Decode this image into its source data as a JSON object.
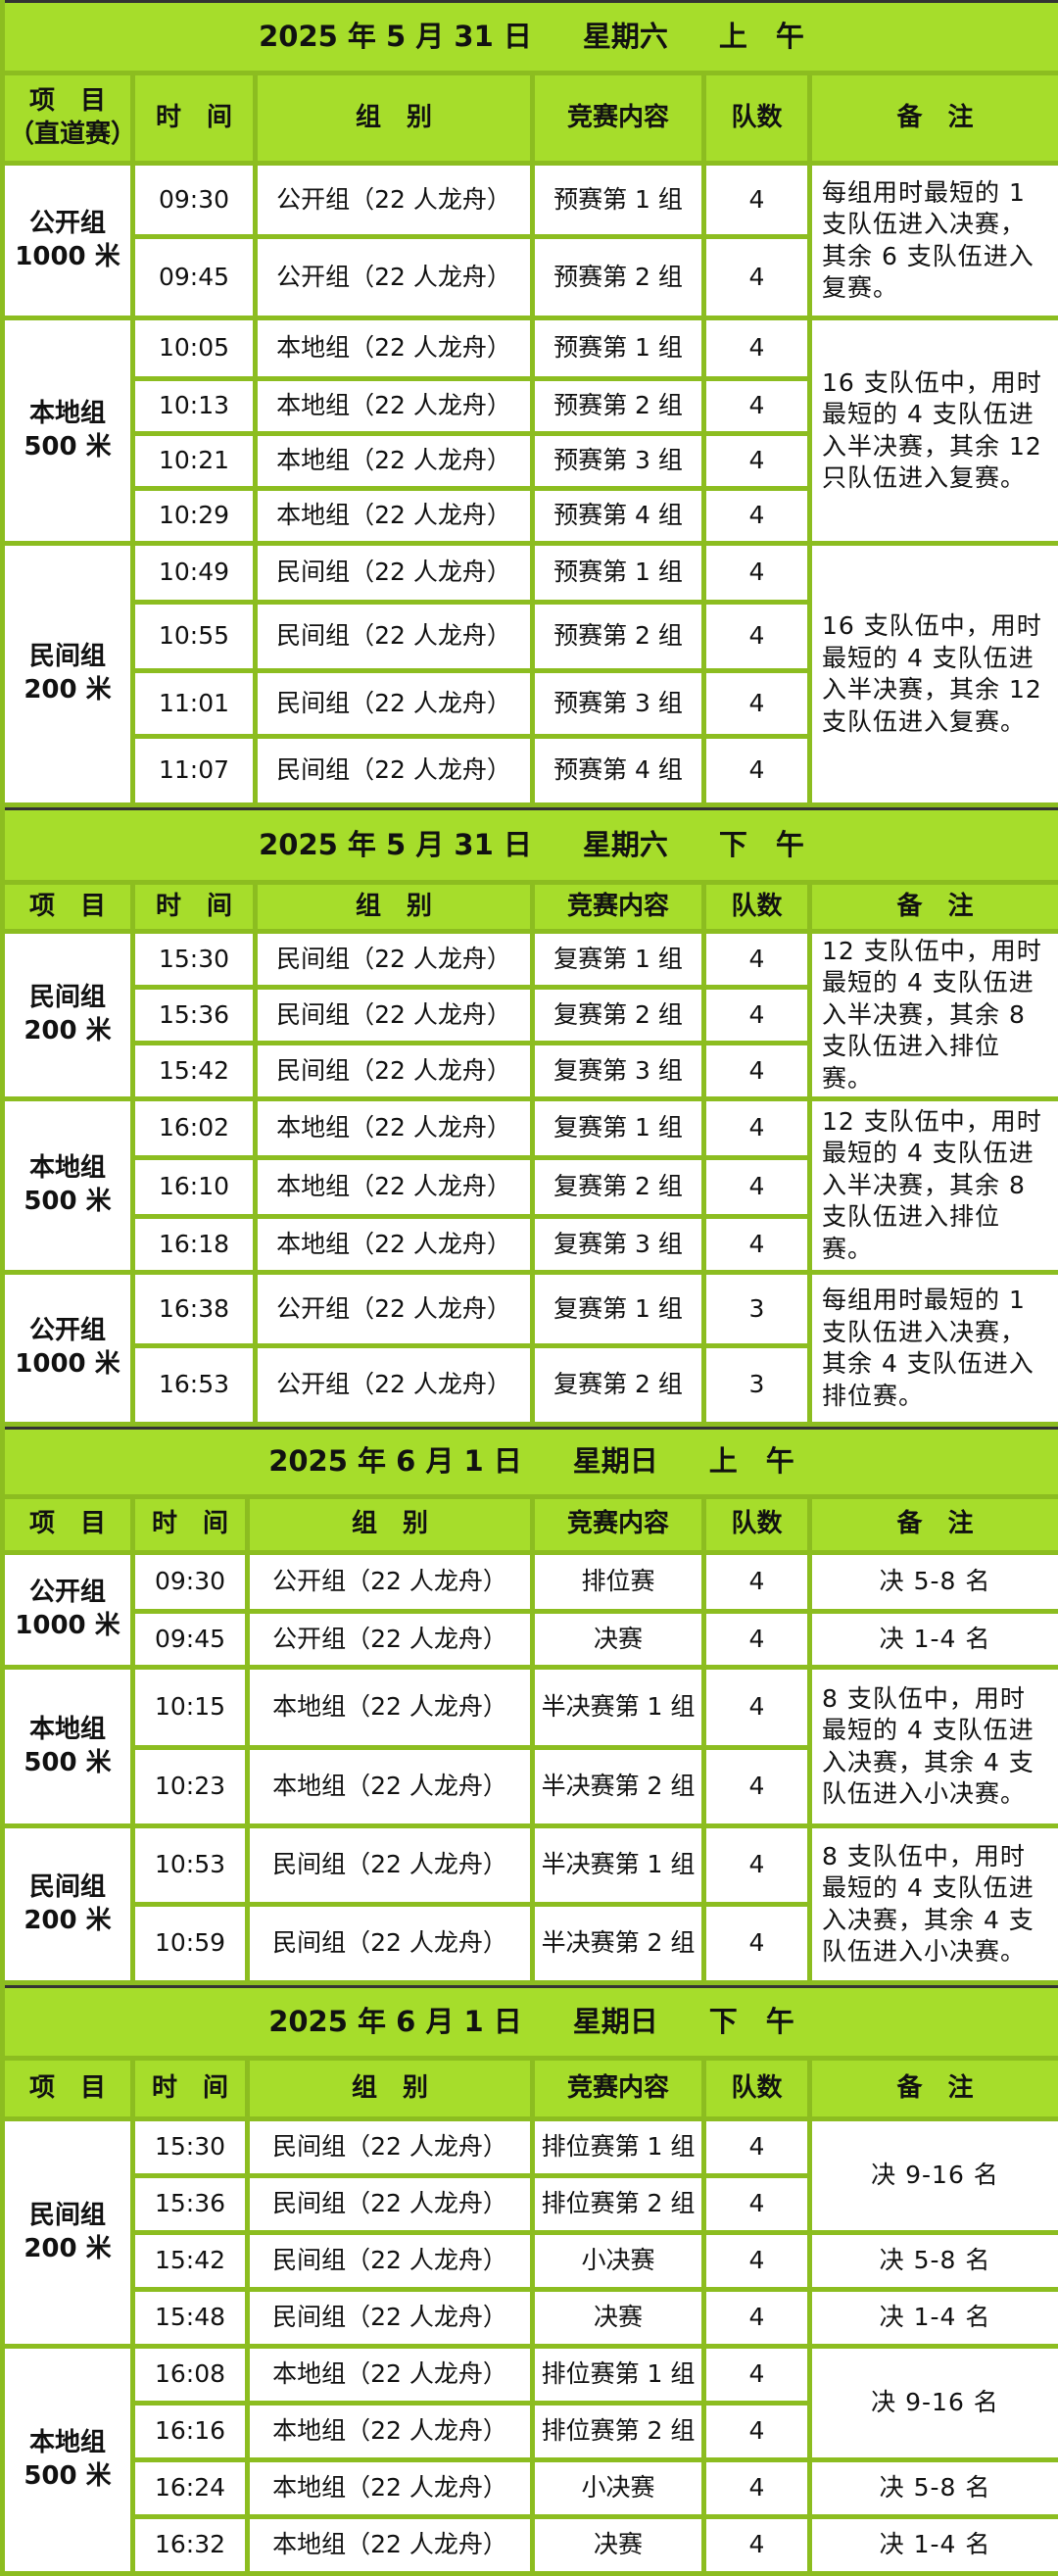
{
  "colors": {
    "header_bg": "#a6dd2b",
    "border": "#8cbd20"
  },
  "sections": [
    {
      "title": {
        "date": "2025 年 5 月 31 日",
        "weekday": "星期六",
        "period": "上　午"
      },
      "headers": {
        "item": "项　目",
        "item_sub": "（直道赛）",
        "time": "时　间",
        "group": "组　别",
        "content": "竞赛内容",
        "teams": "队数",
        "remark": "备　注"
      },
      "groups": [
        {
          "event": [
            "公开组",
            "1000 米"
          ],
          "rows": [
            {
              "time": "09:30",
              "group": "公开组（22 人龙舟）",
              "content": "预赛第 1 组",
              "teams": "4"
            },
            {
              "time": "09:45",
              "group": "公开组（22 人龙舟）",
              "content": "预赛第 2 组",
              "teams": "4"
            }
          ],
          "remarks": [
            {
              "text": "每组用时最短的 1 支队伍进入决赛，其余 6 支队伍进入复赛。",
              "span": 2
            }
          ]
        },
        {
          "event": [
            "本地组",
            "500 米"
          ],
          "rows": [
            {
              "time": "10:05",
              "group": "本地组（22 人龙舟）",
              "content": "预赛第 1 组",
              "teams": "4"
            },
            {
              "time": "10:13",
              "group": "本地组（22 人龙舟）",
              "content": "预赛第 2 组",
              "teams": "4"
            },
            {
              "time": "10:21",
              "group": "本地组（22 人龙舟）",
              "content": "预赛第 3 组",
              "teams": "4"
            },
            {
              "time": "10:29",
              "group": "本地组（22 人龙舟）",
              "content": "预赛第 4 组",
              "teams": "4"
            }
          ],
          "remarks": [
            {
              "text": "16 支队伍中，用时最短的 4 支队伍进入半决赛，其余 12 只队伍进入复赛。",
              "span": 4
            }
          ]
        },
        {
          "event": [
            "民间组",
            "200 米"
          ],
          "rows": [
            {
              "time": "10:49",
              "group": "民间组（22 人龙舟）",
              "content": "预赛第 1 组",
              "teams": "4"
            },
            {
              "time": "10:55",
              "group": "民间组（22 人龙舟）",
              "content": "预赛第 2 组",
              "teams": "4"
            },
            {
              "time": "11:01",
              "group": "民间组（22 人龙舟）",
              "content": "预赛第 3 组",
              "teams": "4"
            },
            {
              "time": "11:07",
              "group": "民间组（22 人龙舟）",
              "content": "预赛第 4 组",
              "teams": "4"
            }
          ],
          "remarks": [
            {
              "text": "16 支队伍中，用时最短的 4 支队伍进入半决赛，其余 12 支队伍进入复赛。",
              "span": 4
            }
          ]
        }
      ]
    },
    {
      "title": {
        "date": "2025 年 5 月 31 日",
        "weekday": "星期六",
        "period": "下　午"
      },
      "headers": {
        "item": "项　目",
        "time": "时　间",
        "group": "组　别",
        "content": "竞赛内容",
        "teams": "队数",
        "remark": "备　注"
      },
      "groups": [
        {
          "event": [
            "民间组",
            "200 米"
          ],
          "rows": [
            {
              "time": "15:30",
              "group": "民间组（22 人龙舟）",
              "content": "复赛第 1 组",
              "teams": "4"
            },
            {
              "time": "15:36",
              "group": "民间组（22 人龙舟）",
              "content": "复赛第 2 组",
              "teams": "4"
            },
            {
              "time": "15:42",
              "group": "民间组（22 人龙舟）",
              "content": "复赛第 3 组",
              "teams": "4"
            }
          ],
          "remarks": [
            {
              "text": "12 支队伍中，用时最短的 4 支队伍进入半决赛，其余 8 支队伍进入排位赛。",
              "span": 3
            }
          ]
        },
        {
          "event": [
            "本地组",
            "500 米"
          ],
          "rows": [
            {
              "time": "16:02",
              "group": "本地组（22 人龙舟）",
              "content": "复赛第 1 组",
              "teams": "4"
            },
            {
              "time": "16:10",
              "group": "本地组（22 人龙舟）",
              "content": "复赛第 2 组",
              "teams": "4"
            },
            {
              "time": "16:18",
              "group": "本地组（22 人龙舟）",
              "content": "复赛第 3 组",
              "teams": "4"
            }
          ],
          "remarks": [
            {
              "text": "12 支队伍中，用时最短的 4 支队伍进入半决赛，其余 8 支队伍进入排位赛。",
              "span": 3
            }
          ]
        },
        {
          "event": [
            "公开组",
            "1000 米"
          ],
          "rows": [
            {
              "time": "16:38",
              "group": "公开组（22 人龙舟）",
              "content": "复赛第 1 组",
              "teams": "3"
            },
            {
              "time": "16:53",
              "group": "公开组（22 人龙舟）",
              "content": "复赛第 2 组",
              "teams": "3"
            }
          ],
          "remarks": [
            {
              "text": "每组用时最短的 1 支队伍进入决赛，其余 4 支队伍进入排位赛。",
              "span": 2
            }
          ]
        }
      ]
    },
    {
      "title": {
        "date": "2025 年 6 月 1 日",
        "weekday": "星期日",
        "period": "上　午"
      },
      "headers": {
        "item": "项　目",
        "time": "时　间",
        "group": "组　别",
        "content": "竞赛内容",
        "teams": "队数",
        "remark": "备　注"
      },
      "groups": [
        {
          "event": [
            "公开组",
            "1000 米"
          ],
          "rows": [
            {
              "time": "09:30",
              "group": "公开组（22 人龙舟）",
              "content": "排位赛",
              "teams": "4"
            },
            {
              "time": "09:45",
              "group": "公开组（22 人龙舟）",
              "content": "决赛",
              "teams": "4"
            }
          ],
          "remarks": [
            {
              "text": "决 5-8 名",
              "span": 1,
              "center": true
            },
            {
              "text": "决 1-4 名",
              "span": 1,
              "center": true
            }
          ]
        },
        {
          "event": [
            "本地组",
            "500 米"
          ],
          "rows": [
            {
              "time": "10:15",
              "group": "本地组（22 人龙舟）",
              "content": "半决赛第 1 组",
              "teams": "4"
            },
            {
              "time": "10:23",
              "group": "本地组（22 人龙舟）",
              "content": "半决赛第 2 组",
              "teams": "4"
            }
          ],
          "remarks": [
            {
              "text": "8 支队伍中，用时最短的 4 支队伍进入决赛，其余 4 支队伍进入小决赛。",
              "span": 2
            }
          ]
        },
        {
          "event": [
            "民间组",
            "200 米"
          ],
          "rows": [
            {
              "time": "10:53",
              "group": "民间组（22 人龙舟）",
              "content": "半决赛第 1 组",
              "teams": "4"
            },
            {
              "time": "10:59",
              "group": "民间组（22 人龙舟）",
              "content": "半决赛第 2 组",
              "teams": "4"
            }
          ],
          "remarks": [
            {
              "text": "8 支队伍中，用时最短的 4 支队伍进入决赛，其余 4 支队伍进入小决赛。",
              "span": 2
            }
          ]
        }
      ]
    },
    {
      "title": {
        "date": "2025 年 6 月 1 日",
        "weekday": "星期日",
        "period": "下　午"
      },
      "headers": {
        "item": "项　目",
        "time": "时　间",
        "group": "组　别",
        "content": "竞赛内容",
        "teams": "队数",
        "remark": "备　注"
      },
      "groups": [
        {
          "event": [
            "民间组",
            "200 米"
          ],
          "rows": [
            {
              "time": "15:30",
              "group": "民间组（22 人龙舟）",
              "content": "排位赛第 1 组",
              "teams": "4"
            },
            {
              "time": "15:36",
              "group": "民间组（22 人龙舟）",
              "content": "排位赛第 2 组",
              "teams": "4"
            },
            {
              "time": "15:42",
              "group": "民间组（22 人龙舟）",
              "content": "小决赛",
              "teams": "4"
            },
            {
              "time": "15:48",
              "group": "民间组（22 人龙舟）",
              "content": "决赛",
              "teams": "4"
            }
          ],
          "remarks": [
            {
              "text": "决 9-16 名",
              "span": 2,
              "center": true
            },
            {
              "text": "决 5-8 名",
              "span": 1,
              "center": true
            },
            {
              "text": "决 1-4 名",
              "span": 1,
              "center": true
            }
          ]
        },
        {
          "event": [
            "本地组",
            "500 米"
          ],
          "rows": [
            {
              "time": "16:08",
              "group": "本地组（22 人龙舟）",
              "content": "排位赛第 1 组",
              "teams": "4"
            },
            {
              "time": "16:16",
              "group": "本地组（22 人龙舟）",
              "content": "排位赛第 2 组",
              "teams": "4"
            },
            {
              "time": "16:24",
              "group": "本地组（22 人龙舟）",
              "content": "小决赛",
              "teams": "4"
            },
            {
              "time": "16:32",
              "group": "本地组（22 人龙舟）",
              "content": "决赛",
              "teams": "4"
            }
          ],
          "remarks": [
            {
              "text": "决 9-16 名",
              "span": 2,
              "center": true
            },
            {
              "text": "决 5-8 名",
              "span": 1,
              "center": true
            },
            {
              "text": "决 1-4 名",
              "span": 1,
              "center": true
            }
          ]
        }
      ]
    }
  ]
}
